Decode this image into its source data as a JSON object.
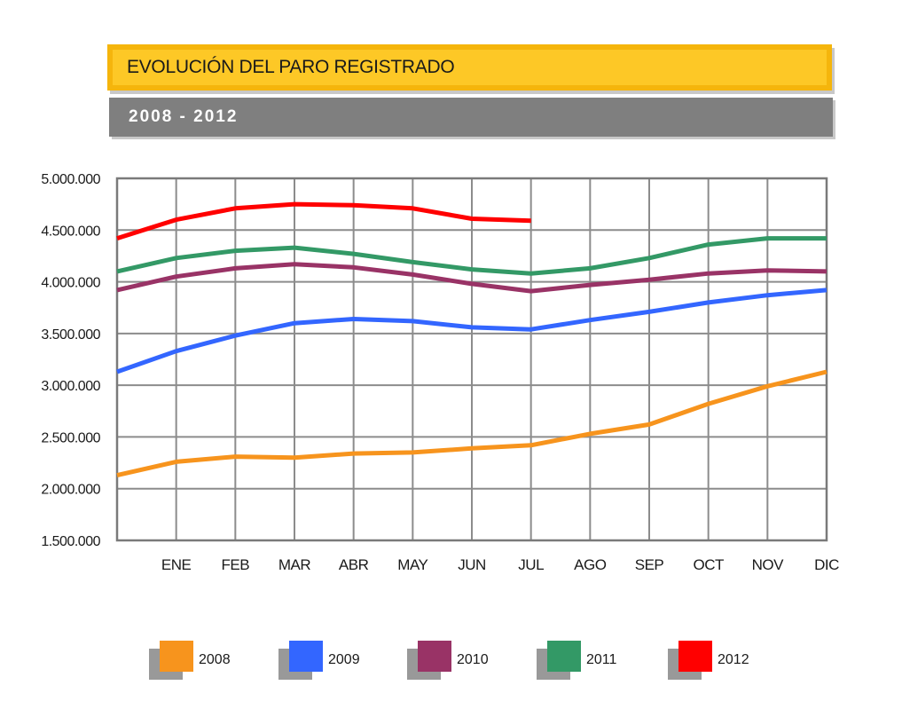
{
  "header": {
    "title": "EVOLUCIÓN DEL PARO REGISTRADO",
    "subtitle": "2008 - 2012"
  },
  "chart_data": {
    "type": "line",
    "title": "EVOLUCIÓN DEL PARO REGISTRADO",
    "subtitle": "2008 - 2012",
    "xlabel": "",
    "ylabel": "",
    "categories": [
      "",
      "ENE",
      "FEB",
      "MAR",
      "ABR",
      "MAY",
      "JUN",
      "JUL",
      "AGO",
      "SEP",
      "OCT",
      "NOV",
      "DIC"
    ],
    "ylim": [
      1500000,
      5000000
    ],
    "y_ticks": [
      1500000,
      2000000,
      2500000,
      3000000,
      3500000,
      4000000,
      4500000,
      5000000
    ],
    "y_tick_labels": [
      "1.500.000",
      "2.000.000",
      "2.500.000",
      "3.000.000",
      "3.500.000",
      "4.000.000",
      "4.500.000",
      "5.000.000"
    ],
    "grid": true,
    "legend_position": "bottom",
    "series": [
      {
        "name": "2008",
        "color": "#f7941d",
        "values": [
          2130000,
          2260000,
          2310000,
          2300000,
          2340000,
          2350000,
          2390000,
          2420000,
          2530000,
          2620000,
          2820000,
          2990000,
          3130000
        ]
      },
      {
        "name": "2009",
        "color": "#3366ff",
        "values": [
          3130000,
          3330000,
          3480000,
          3600000,
          3640000,
          3620000,
          3560000,
          3540000,
          3630000,
          3710000,
          3800000,
          3870000,
          3920000
        ]
      },
      {
        "name": "2010",
        "color": "#993366",
        "values": [
          3920000,
          4050000,
          4130000,
          4170000,
          4140000,
          4070000,
          3980000,
          3910000,
          3970000,
          4020000,
          4080000,
          4110000,
          4100000
        ]
      },
      {
        "name": "2011",
        "color": "#339966",
        "values": [
          4100000,
          4230000,
          4300000,
          4330000,
          4270000,
          4190000,
          4120000,
          4080000,
          4130000,
          4230000,
          4360000,
          4420000,
          4420000
        ]
      },
      {
        "name": "2012",
        "color": "#ff0000",
        "values": [
          4420000,
          4600000,
          4710000,
          4750000,
          4740000,
          4710000,
          4610000,
          4590000,
          null,
          null,
          null,
          null,
          null
        ]
      }
    ]
  }
}
